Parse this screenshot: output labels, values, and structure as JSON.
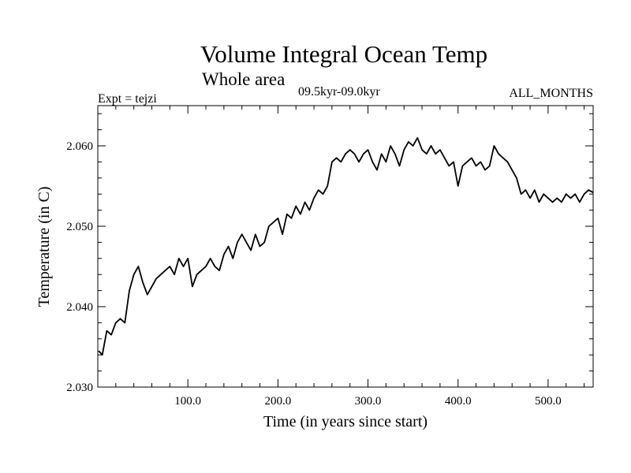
{
  "chart_data": {
    "type": "line",
    "title": "Volume Integral Ocean Temp",
    "subtitle": "Whole area",
    "period_label": "09.5kyr-09.0kyr",
    "expt_label": "Expt = tejzi",
    "months_label": "ALL_MONTHS",
    "xlabel": "Time (in years since start)",
    "ylabel": "Temperature (in C)",
    "xlim": [
      0,
      550
    ],
    "ylim": [
      2.03,
      2.065
    ],
    "x_ticks": [
      100,
      200,
      300,
      400,
      500
    ],
    "x_tick_labels": [
      "100.0",
      "200.0",
      "300.0",
      "400.0",
      "500.0"
    ],
    "y_ticks": [
      2.03,
      2.04,
      2.05,
      2.06
    ],
    "y_tick_labels": [
      "2.030",
      "2.040",
      "2.050",
      "2.060"
    ],
    "grid": false,
    "series": [
      {
        "name": "Volume integral ocean temperature",
        "color": "#000000",
        "x": [
          1,
          5,
          10,
          15,
          20,
          25,
          30,
          35,
          40,
          45,
          50,
          55,
          60,
          65,
          70,
          75,
          80,
          85,
          90,
          95,
          100,
          105,
          110,
          115,
          120,
          125,
          130,
          135,
          140,
          145,
          150,
          155,
          160,
          165,
          170,
          175,
          180,
          185,
          190,
          195,
          200,
          205,
          210,
          215,
          220,
          225,
          230,
          235,
          240,
          245,
          250,
          255,
          260,
          265,
          270,
          275,
          280,
          285,
          290,
          295,
          300,
          305,
          310,
          315,
          320,
          325,
          330,
          335,
          340,
          345,
          350,
          355,
          360,
          365,
          370,
          375,
          380,
          385,
          390,
          395,
          400,
          405,
          410,
          415,
          420,
          425,
          430,
          435,
          440,
          445,
          450,
          455,
          460,
          465,
          470,
          475,
          480,
          485,
          490,
          495,
          500,
          505,
          510,
          515,
          520,
          525,
          530,
          535,
          540,
          545,
          550
        ],
        "values": [
          2.0345,
          2.034,
          2.037,
          2.0365,
          2.038,
          2.0385,
          2.038,
          2.042,
          2.044,
          2.045,
          2.043,
          2.0415,
          2.0425,
          2.0435,
          2.044,
          2.0445,
          2.045,
          2.044,
          2.046,
          2.045,
          2.046,
          2.0425,
          2.044,
          2.0445,
          2.045,
          2.046,
          2.045,
          2.0445,
          2.0465,
          2.0475,
          2.046,
          2.048,
          2.049,
          2.048,
          2.047,
          2.049,
          2.0475,
          2.048,
          2.05,
          2.0505,
          2.051,
          2.049,
          2.0515,
          2.051,
          2.0525,
          2.0515,
          2.053,
          2.052,
          2.0535,
          2.0545,
          2.054,
          2.055,
          2.058,
          2.0585,
          2.058,
          2.059,
          2.0595,
          2.059,
          2.058,
          2.059,
          2.0595,
          2.058,
          2.057,
          2.059,
          2.058,
          2.06,
          2.059,
          2.0575,
          2.0595,
          2.0605,
          2.06,
          2.061,
          2.0595,
          2.059,
          2.06,
          2.059,
          2.0595,
          2.0585,
          2.0575,
          2.058,
          2.055,
          2.0575,
          2.058,
          2.0585,
          2.0575,
          2.058,
          2.057,
          2.0575,
          2.06,
          2.059,
          2.0585,
          2.058,
          2.057,
          2.056,
          2.054,
          2.0545,
          2.0535,
          2.0545,
          2.053,
          2.054,
          2.0535,
          2.053,
          2.0535,
          2.053,
          2.054,
          2.0535,
          2.054,
          2.053,
          2.054,
          2.0545,
          2.0542
        ]
      }
    ]
  }
}
